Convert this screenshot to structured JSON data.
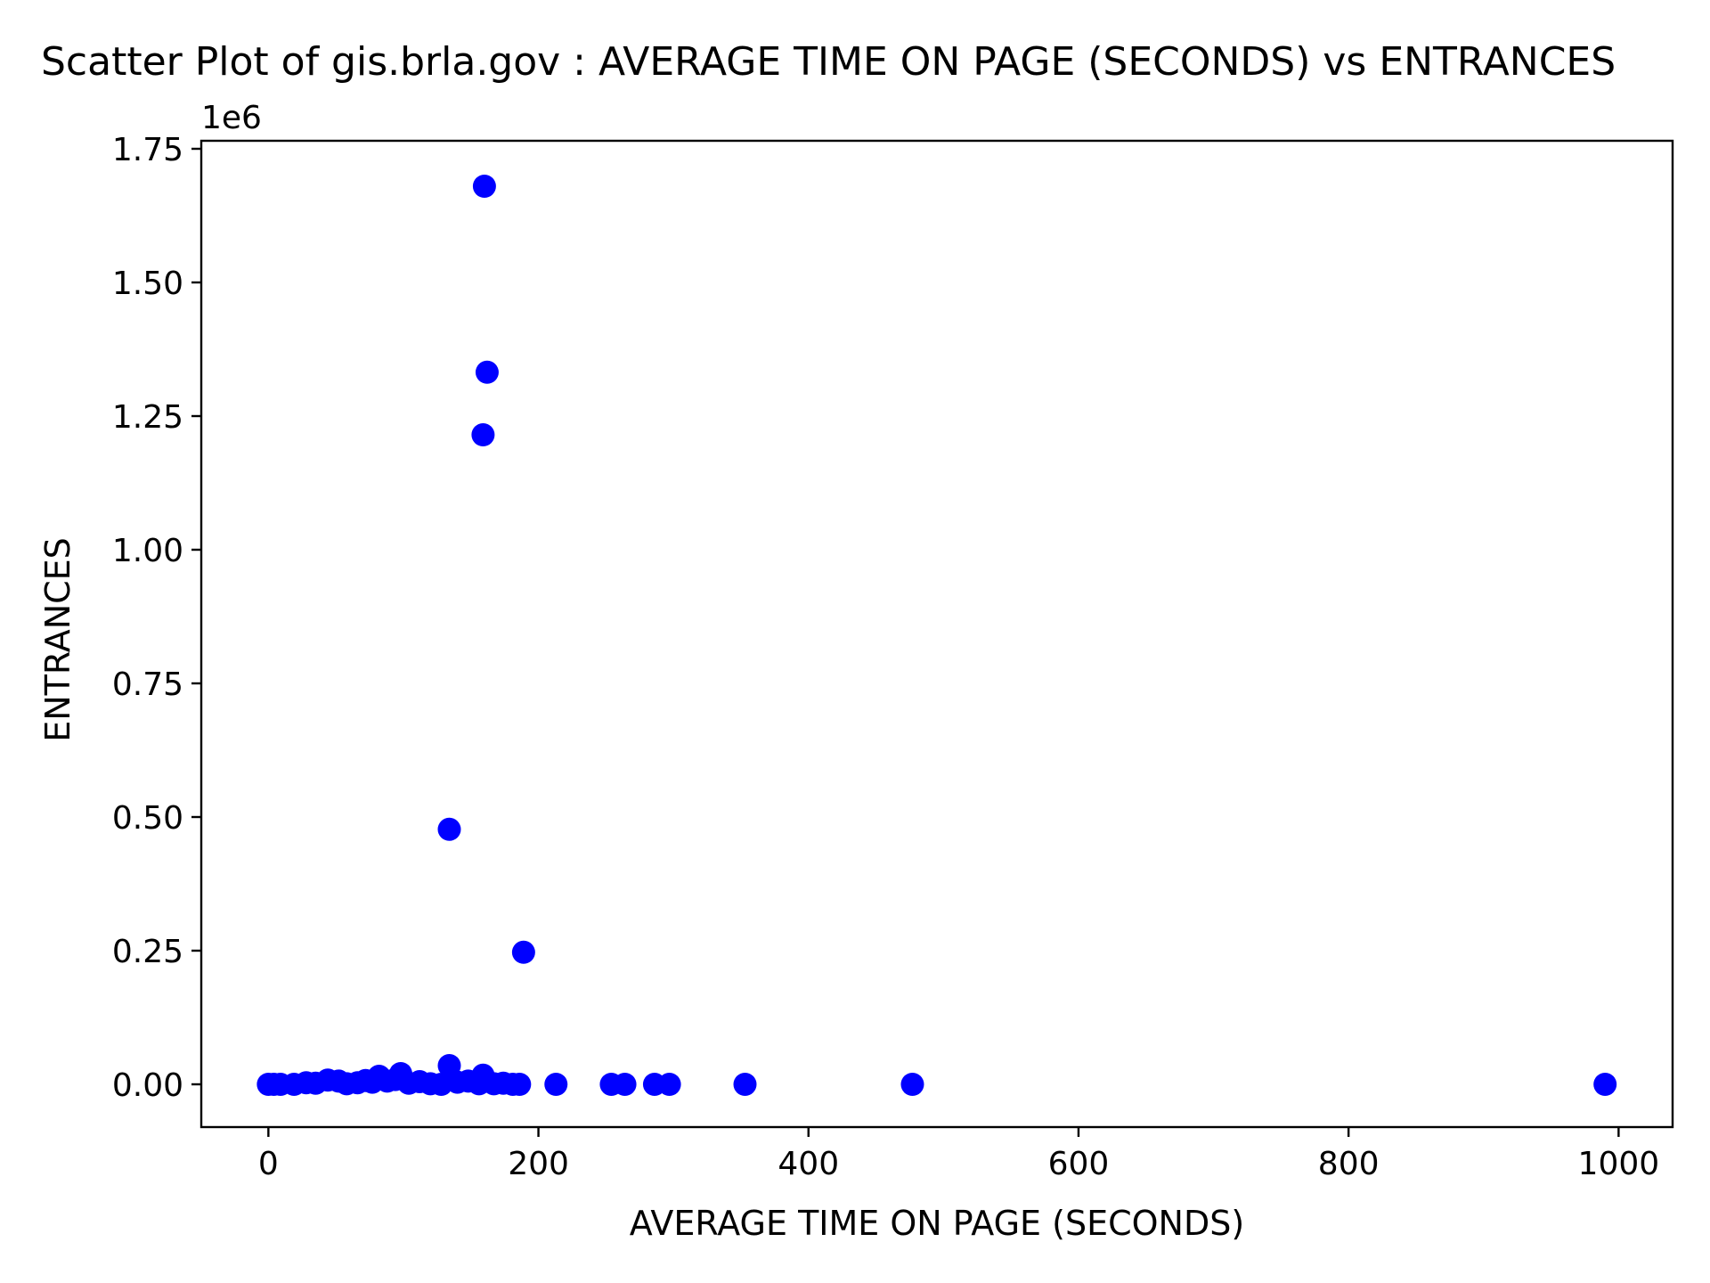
{
  "chart_data": {
    "type": "scatter",
    "title": "Scatter Plot of gis.brla.gov : AVERAGE TIME ON PAGE (SECONDS) vs ENTRANCES",
    "xlabel": "AVERAGE TIME ON PAGE (SECONDS)",
    "ylabel": "ENTRANCES",
    "y_offset_label": "1e6",
    "xlim": [
      -49.7,
      1040
    ],
    "ylim": [
      -0.08,
      1.765
    ],
    "y_scale_factor": 1000000,
    "xticks": [
      0,
      200,
      400,
      600,
      800,
      1000
    ],
    "xtick_labels": [
      "0",
      "200",
      "400",
      "600",
      "800",
      "1000"
    ],
    "yticks": [
      0.0,
      0.25,
      0.5,
      0.75,
      1.0,
      1.25,
      1.5,
      1.75
    ],
    "ytick_labels": [
      "0.00",
      "0.25",
      "0.50",
      "0.75",
      "1.00",
      "1.25",
      "1.50",
      "1.75"
    ],
    "grid": false,
    "legend": "none",
    "marker_color": "#0000ff",
    "series": [
      {
        "x": [
          160,
          162,
          159,
          134,
          189,
          134,
          159,
          98,
          82,
          0,
          4,
          9,
          19,
          28,
          35,
          44,
          52,
          58,
          66,
          72,
          77,
          88,
          94,
          104,
          112,
          120,
          128,
          140,
          148,
          156,
          167,
          174,
          181,
          186,
          213,
          254,
          264,
          286,
          297,
          353,
          477,
          990
        ],
        "y": [
          1.68,
          1.332,
          1.215,
          0.477,
          0.247,
          0.035,
          0.017,
          0.02,
          0.015,
          0.0,
          0.0,
          0.0,
          0.0,
          0.003,
          0.002,
          0.008,
          0.006,
          0.001,
          0.003,
          0.007,
          0.004,
          0.006,
          0.009,
          0.002,
          0.005,
          0.001,
          0.0,
          0.004,
          0.006,
          0.001,
          0.001,
          0.002,
          0.0,
          0.0,
          0.0,
          0.0,
          0.0,
          0.0,
          0.0,
          0.0,
          0.0,
          0.0
        ]
      }
    ]
  }
}
